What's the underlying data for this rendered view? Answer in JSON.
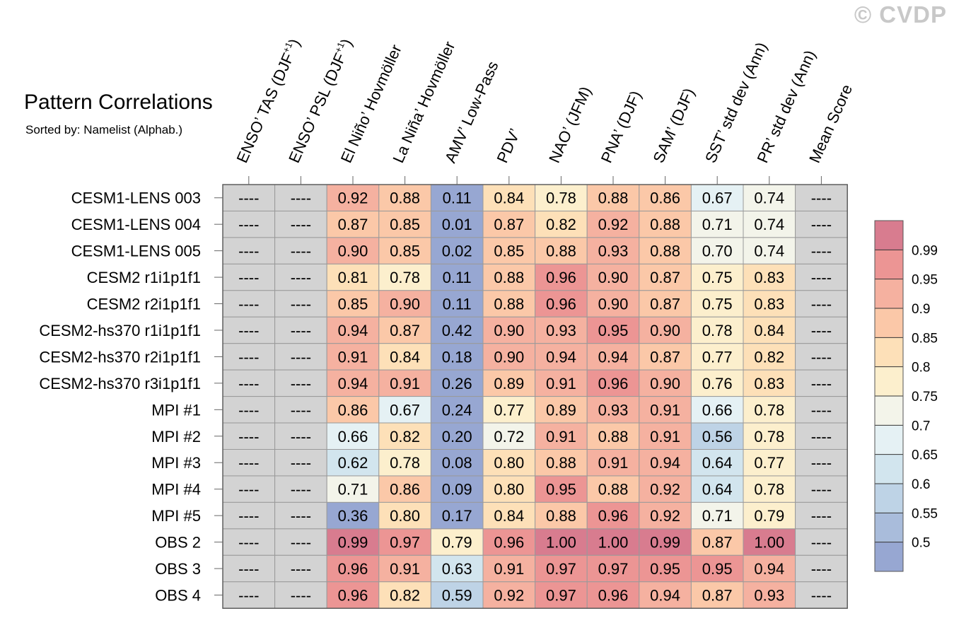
{
  "watermark": "© CVDP",
  "title": "Pattern Correlations",
  "subtitle": "Sorted by: Namelist (Alphab.)",
  "chart_data": {
    "type": "heatmap",
    "columns": [
      {
        "base": "ENSO’ TAS (DJF",
        "sup": "+1",
        "tail": ")"
      },
      {
        "base": "ENSO’ PSL (DJF",
        "sup": "+1",
        "tail": ")"
      },
      {
        "base": "El Niño’ Hovmöller",
        "sup": "",
        "tail": ""
      },
      {
        "base": "La Niña’ Hovmöller",
        "sup": "",
        "tail": ""
      },
      {
        "base": "AMV’ Low-Pass",
        "sup": "",
        "tail": ""
      },
      {
        "base": "PDV’",
        "sup": "",
        "tail": ""
      },
      {
        "base": "NAO’ (JFM)",
        "sup": "",
        "tail": ""
      },
      {
        "base": "PNA’ (DJF)",
        "sup": "",
        "tail": ""
      },
      {
        "base": "SAM’ (DJF)",
        "sup": "",
        "tail": ""
      },
      {
        "base": "SST’ std dev (Ann)",
        "sup": "",
        "tail": ""
      },
      {
        "base": "PR’ std dev (Ann)",
        "sup": "",
        "tail": ""
      },
      {
        "base": "Mean Score",
        "sup": "",
        "tail": ""
      }
    ],
    "rows": [
      "CESM1-LENS 003",
      "CESM1-LENS 004",
      "CESM1-LENS 005",
      "CESM2 r1i1p1f1",
      "CESM2 r2i1p1f1",
      "CESM2-hs370 r1i1p1f1",
      "CESM2-hs370 r2i1p1f1",
      "CESM2-hs370 r3i1p1f1",
      "MPI #1",
      "MPI #2",
      "MPI #3",
      "MPI #4",
      "MPI #5",
      "OBS 2",
      "OBS 3",
      "OBS 4"
    ],
    "values": [
      [
        "----",
        "----",
        "0.92",
        "0.88",
        "0.11",
        "0.84",
        "0.78",
        "0.88",
        "0.86",
        "0.67",
        "0.74",
        "----"
      ],
      [
        "----",
        "----",
        "0.87",
        "0.85",
        "0.01",
        "0.87",
        "0.82",
        "0.92",
        "0.88",
        "0.71",
        "0.74",
        "----"
      ],
      [
        "----",
        "----",
        "0.90",
        "0.85",
        "0.02",
        "0.85",
        "0.88",
        "0.93",
        "0.88",
        "0.70",
        "0.74",
        "----"
      ],
      [
        "----",
        "----",
        "0.81",
        "0.78",
        "0.11",
        "0.88",
        "0.96",
        "0.90",
        "0.87",
        "0.75",
        "0.83",
        "----"
      ],
      [
        "----",
        "----",
        "0.85",
        "0.90",
        "0.11",
        "0.88",
        "0.96",
        "0.90",
        "0.87",
        "0.75",
        "0.83",
        "----"
      ],
      [
        "----",
        "----",
        "0.94",
        "0.87",
        "0.42",
        "0.90",
        "0.93",
        "0.95",
        "0.90",
        "0.78",
        "0.84",
        "----"
      ],
      [
        "----",
        "----",
        "0.91",
        "0.84",
        "0.18",
        "0.90",
        "0.94",
        "0.94",
        "0.87",
        "0.77",
        "0.82",
        "----"
      ],
      [
        "----",
        "----",
        "0.94",
        "0.91",
        "0.26",
        "0.89",
        "0.91",
        "0.96",
        "0.90",
        "0.76",
        "0.83",
        "----"
      ],
      [
        "----",
        "----",
        "0.86",
        "0.67",
        "0.24",
        "0.77",
        "0.89",
        "0.93",
        "0.91",
        "0.66",
        "0.78",
        "----"
      ],
      [
        "----",
        "----",
        "0.66",
        "0.82",
        "0.20",
        "0.72",
        "0.91",
        "0.88",
        "0.91",
        "0.56",
        "0.78",
        "----"
      ],
      [
        "----",
        "----",
        "0.62",
        "0.78",
        "0.08",
        "0.80",
        "0.88",
        "0.91",
        "0.94",
        "0.64",
        "0.77",
        "----"
      ],
      [
        "----",
        "----",
        "0.71",
        "0.86",
        "0.09",
        "0.80",
        "0.95",
        "0.88",
        "0.92",
        "0.64",
        "0.78",
        "----"
      ],
      [
        "----",
        "----",
        "0.36",
        "0.80",
        "0.17",
        "0.84",
        "0.88",
        "0.96",
        "0.92",
        "0.71",
        "0.79",
        "----"
      ],
      [
        "----",
        "----",
        "0.99",
        "0.97",
        "0.79",
        "0.96",
        "1.00",
        "1.00",
        "0.99",
        "0.87",
        "1.00",
        "----"
      ],
      [
        "----",
        "----",
        "0.96",
        "0.91",
        "0.63",
        "0.91",
        "0.97",
        "0.97",
        "0.95",
        "0.95",
        "0.94",
        "----"
      ],
      [
        "----",
        "----",
        "0.96",
        "0.82",
        "0.59",
        "0.92",
        "0.97",
        "0.96",
        "0.94",
        "0.87",
        "0.93",
        "----"
      ]
    ],
    "missing_value": "----",
    "colorbar": {
      "levels": [
        "0.5",
        "0.55",
        "0.6",
        "0.65",
        "0.7",
        "0.75",
        "0.8",
        "0.85",
        "0.9",
        "0.95",
        "0.99"
      ],
      "colors": [
        "#97a7d2",
        "#a9bcdb",
        "#bed3e6",
        "#d2e5ee",
        "#e5f1f4",
        "#f3f4ea",
        "#fcefcd",
        "#fde0b8",
        "#fbc8a8",
        "#f5b1a0",
        "#ec9594",
        "#d87c8f"
      ],
      "missing_color": "#d3d3d3"
    }
  }
}
